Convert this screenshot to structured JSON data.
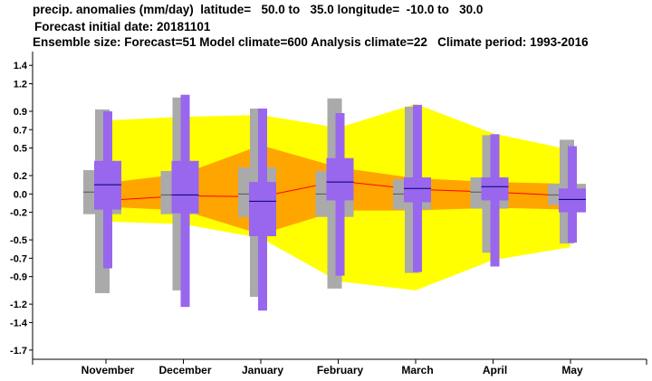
{
  "header": {
    "line1": "precip. anomalies (mm/day)  latitude=   50.0 to   35.0 longitude=  -10.0 to   30.0",
    "line2": "Forecast initial date: 20181101",
    "line3": "Ensemble size: Forecast=51 Model climate=600 Analysis climate=22   Climate period: 1993-2016"
  },
  "chart_data": {
    "type": "box",
    "title": "precip. anomalies (mm/day)",
    "categories": [
      "November",
      "December",
      "January",
      "February",
      "March",
      "April",
      "May"
    ],
    "ylim": [
      -1.8,
      1.55
    ],
    "yticks": [
      1.4,
      1.2,
      0.9,
      0.7,
      0.5,
      0.2,
      0.0,
      -0.2,
      -0.5,
      -0.7,
      -0.9,
      -1.2,
      -1.4,
      -1.7
    ],
    "ytick_labels": [
      "1.4",
      "1.2",
      "0.9",
      "0.7",
      "0.5",
      "0.2",
      "0.0",
      "-0.2",
      "-0.5",
      "-0.7",
      "-0.9",
      "-1.2",
      "-1.4",
      "-1.7"
    ],
    "climate_outer_band": {
      "upper": [
        0.8,
        0.84,
        0.86,
        0.72,
        0.98,
        0.66,
        0.48
      ],
      "lower": [
        -0.3,
        -0.33,
        -0.48,
        -0.95,
        -1.05,
        -0.72,
        -0.58
      ]
    },
    "climate_inner_band": {
      "upper": [
        0.12,
        0.22,
        0.53,
        0.29,
        0.17,
        0.13,
        0.11
      ],
      "lower": [
        -0.14,
        -0.18,
        -0.44,
        -0.18,
        -0.18,
        -0.15,
        -0.17
      ]
    },
    "climate_median": [
      -0.07,
      -0.02,
      -0.03,
      0.14,
      0.05,
      0.02,
      -0.02
    ],
    "climate_boxes": [
      {
        "whisker_low": -1.08,
        "q1": -0.22,
        "median": 0.02,
        "q3": 0.26,
        "whisker_high": 0.92
      },
      {
        "whisker_low": -1.05,
        "q1": -0.22,
        "median": -0.01,
        "q3": 0.25,
        "whisker_high": 1.05
      },
      {
        "whisker_low": -1.12,
        "q1": -0.25,
        "median": 0.0,
        "q3": 0.29,
        "whisker_high": 0.93
      },
      {
        "whisker_low": -1.03,
        "q1": -0.25,
        "median": 0.0,
        "q3": 0.25,
        "whisker_high": 1.04
      },
      {
        "whisker_low": -0.86,
        "q1": -0.17,
        "median": 0.0,
        "q3": 0.16,
        "whisker_high": 0.95
      },
      {
        "whisker_low": -0.64,
        "q1": -0.16,
        "median": 0.02,
        "q3": 0.18,
        "whisker_high": 0.64
      },
      {
        "whisker_low": -0.54,
        "q1": -0.12,
        "median": -0.01,
        "q3": 0.11,
        "whisker_high": 0.59
      }
    ],
    "forecast_boxes": [
      {
        "whisker_low": -0.81,
        "q1": -0.17,
        "median": 0.1,
        "q3": 0.36,
        "whisker_high": 0.9
      },
      {
        "whisker_low": -1.23,
        "q1": -0.21,
        "median": -0.01,
        "q3": 0.36,
        "whisker_high": 1.08
      },
      {
        "whisker_low": -1.27,
        "q1": -0.46,
        "median": -0.08,
        "q3": 0.13,
        "whisker_high": 0.93
      },
      {
        "whisker_low": -0.89,
        "q1": -0.07,
        "median": 0.13,
        "q3": 0.39,
        "whisker_high": 0.88
      },
      {
        "whisker_low": -0.85,
        "q1": -0.09,
        "median": 0.06,
        "q3": 0.18,
        "whisker_high": 0.97
      },
      {
        "whisker_low": -0.79,
        "q1": -0.07,
        "median": 0.08,
        "q3": 0.18,
        "whisker_high": 0.65
      },
      {
        "whisker_low": -0.53,
        "q1": -0.2,
        "median": -0.06,
        "q3": 0.06,
        "whisker_high": 0.52
      }
    ],
    "grid": false,
    "colors": {
      "outer_band": "#ffff00",
      "inner_band": "#ffa500",
      "climate_median_line": "#ff0000",
      "climate_box": "#aaaaaa",
      "forecast_box": "#9966ee",
      "median_tick": "#000066"
    }
  }
}
